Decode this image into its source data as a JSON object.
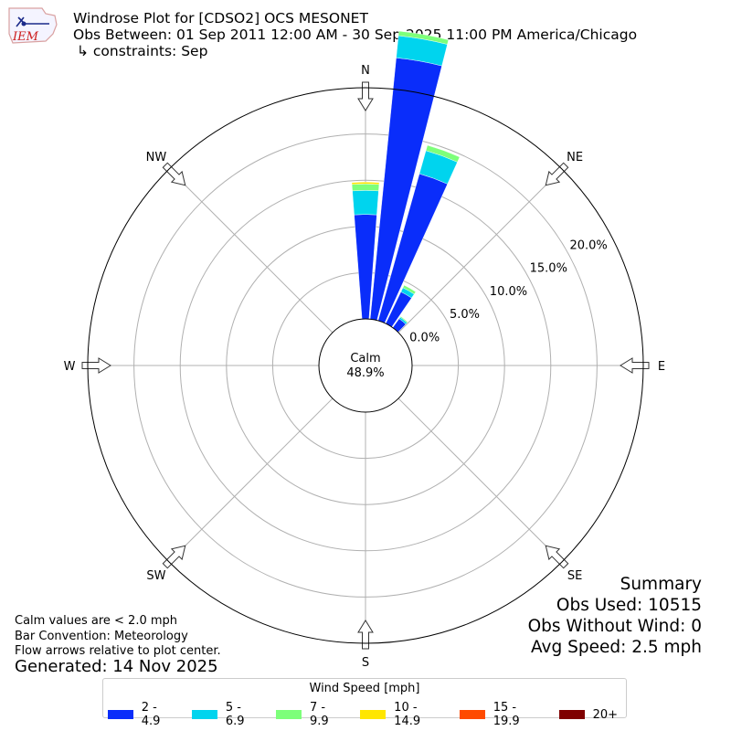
{
  "header": {
    "logo_text": "IEM",
    "title": "Windrose Plot for [CDSO2] OCS MESONET",
    "subtitle": "Obs Between: 01 Sep 2011 12:00 AM - 30 Sep 2025 11:00 PM America/Chicago",
    "constraints": "↳ constraints: Sep"
  },
  "notes": {
    "calm_note": "Calm values are < 2.0 mph",
    "bar_convention": "Bar Convention: Meteorology",
    "flow_arrows": "Flow arrows relative to plot center.",
    "generated": "Generated: 14 Nov 2025"
  },
  "summary": {
    "heading": "Summary",
    "obs_used": "Obs Used: 10515",
    "obs_without_wind": "Obs Without Wind: 0",
    "avg_speed": "Avg Speed: 2.5 mph"
  },
  "calm": {
    "label": "Calm",
    "value": "48.9%"
  },
  "legend": {
    "title": "Wind Speed [mph]"
  },
  "chart_data": {
    "type": "windrose",
    "directions": [
      "N",
      "NE",
      "E",
      "SE",
      "S",
      "SW",
      "W",
      "NW"
    ],
    "radial_ticks": [
      "0.0%",
      "5.0%",
      "10.0%",
      "15.0%",
      "20.0%"
    ],
    "radial_range": [
      0,
      25
    ],
    "bar_centers_deg": [
      0,
      10,
      20,
      30,
      40
    ],
    "series": [
      {
        "name": "2 - 4.9",
        "color": "#0a2dfa",
        "values": [
          11.3,
          28.4,
          16.5,
          3.8,
          1.2
        ]
      },
      {
        "name": "5 - 6.9",
        "color": "#00d4ee",
        "values": [
          2.6,
          2.4,
          2.6,
          0.5,
          0.2
        ]
      },
      {
        "name": "7 - 9.9",
        "color": "#7dff7a",
        "values": [
          0.7,
          0.5,
          0.6,
          0.3,
          0.1
        ]
      },
      {
        "name": "10 - 14.9",
        "color": "#ffe600",
        "values": [
          0.2,
          0,
          0,
          0,
          0
        ]
      },
      {
        "name": "15 - 19.9",
        "color": "#ff4a00",
        "values": [
          0,
          0,
          0,
          0,
          0
        ]
      },
      {
        "name": "20+",
        "color": "#7f0000",
        "values": [
          0,
          0,
          0,
          0,
          0
        ]
      }
    ],
    "grid": true
  }
}
